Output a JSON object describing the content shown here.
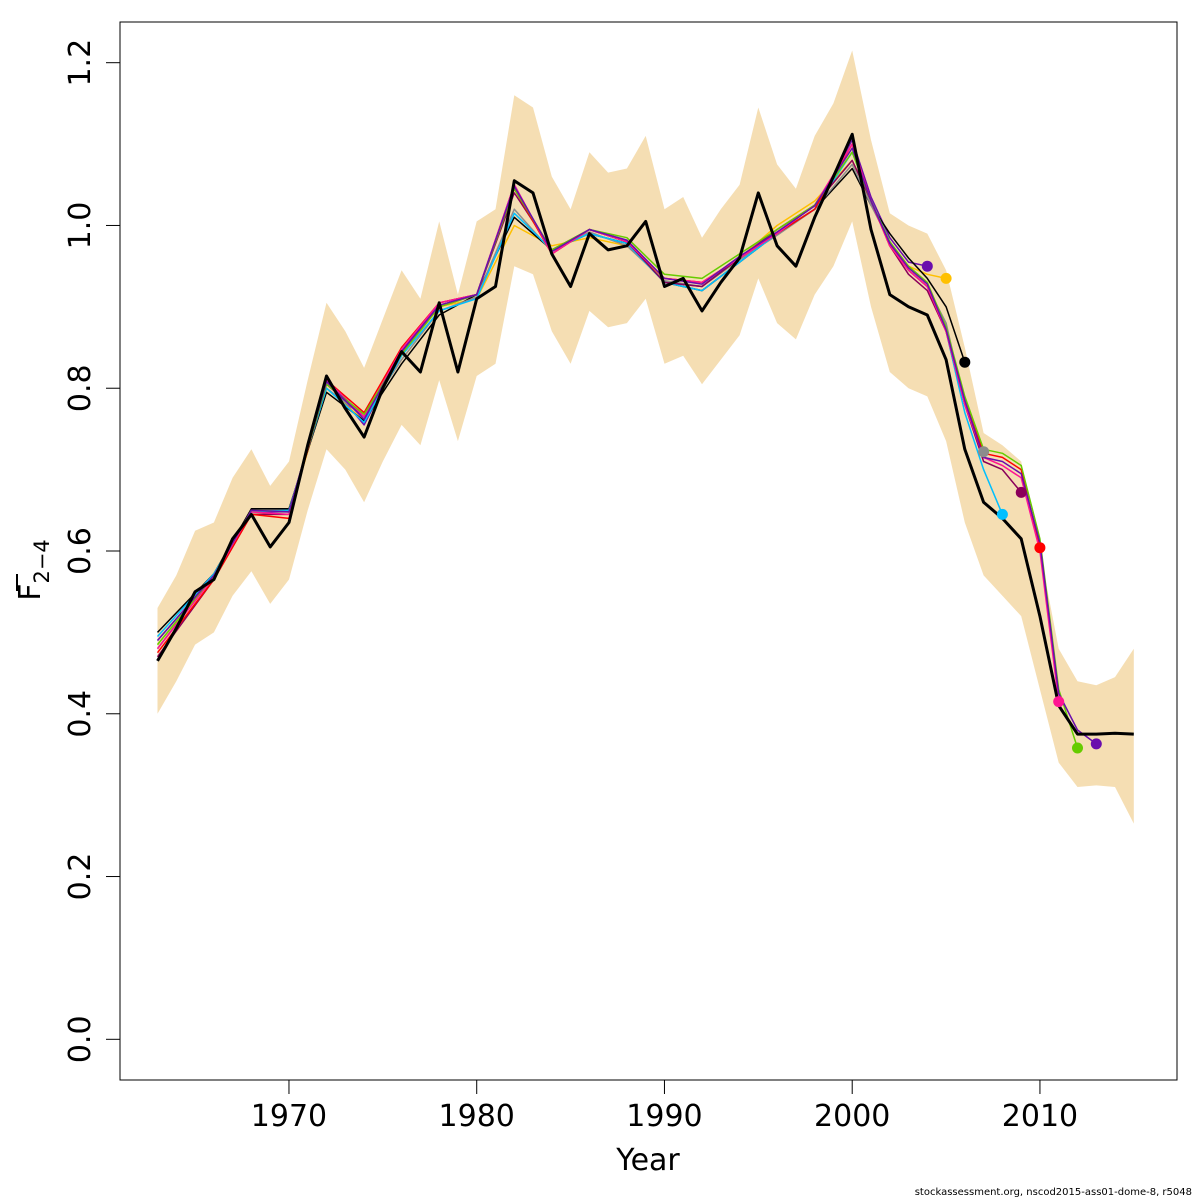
{
  "chart_data": {
    "type": "line",
    "title": "",
    "xlabel": "Year",
    "ylabel_main": "F",
    "ylabel_sub": "2−4",
    "xlim": [
      1961,
      2017.3
    ],
    "ylim": [
      -0.05,
      1.25
    ],
    "x_ticks": [
      1970,
      1980,
      1990,
      2000,
      2010
    ],
    "x_tick_labels": [
      "1970",
      "1980",
      "1990",
      "2000",
      "2010"
    ],
    "y_ticks": [
      0.0,
      0.2,
      0.4,
      0.6,
      0.8,
      1.0,
      1.2
    ],
    "y_tick_labels": [
      "0.0",
      "0.2",
      "0.4",
      "0.6",
      "0.8",
      "1.0",
      "1.2"
    ],
    "band_color": "#f5deb3",
    "grid": false,
    "confidence_band": {
      "x": [
        1963,
        1964,
        1965,
        1966,
        1967,
        1968,
        1969,
        1970,
        1971,
        1972,
        1973,
        1974,
        1975,
        1976,
        1977,
        1978,
        1979,
        1980,
        1981,
        1982,
        1983,
        1984,
        1985,
        1986,
        1987,
        1988,
        1989,
        1990,
        1991,
        1992,
        1993,
        1994,
        1995,
        1996,
        1997,
        1998,
        1999,
        2000,
        2001,
        2002,
        2003,
        2004,
        2005,
        2006,
        2007,
        2008,
        2009,
        2010,
        2011,
        2012,
        2013,
        2014,
        2015
      ],
      "upper": [
        0.53,
        0.57,
        0.625,
        0.635,
        0.69,
        0.725,
        0.68,
        0.71,
        0.81,
        0.905,
        0.87,
        0.825,
        0.885,
        0.945,
        0.91,
        1.005,
        0.915,
        1.005,
        1.02,
        1.16,
        1.145,
        1.06,
        1.02,
        1.09,
        1.065,
        1.07,
        1.11,
        1.02,
        1.035,
        0.985,
        1.02,
        1.05,
        1.145,
        1.075,
        1.045,
        1.11,
        1.15,
        1.215,
        1.105,
        1.015,
        1.0,
        0.99,
        0.945,
        0.85,
        0.745,
        0.73,
        0.71,
        0.6,
        0.48,
        0.44,
        0.435,
        0.445,
        0.48
      ],
      "lower": [
        0.4,
        0.44,
        0.485,
        0.5,
        0.545,
        0.575,
        0.535,
        0.565,
        0.65,
        0.725,
        0.7,
        0.66,
        0.71,
        0.755,
        0.73,
        0.81,
        0.735,
        0.815,
        0.83,
        0.95,
        0.94,
        0.87,
        0.83,
        0.895,
        0.875,
        0.88,
        0.91,
        0.83,
        0.84,
        0.805,
        0.835,
        0.865,
        0.935,
        0.88,
        0.86,
        0.915,
        0.95,
        1.005,
        0.9,
        0.82,
        0.8,
        0.79,
        0.735,
        0.635,
        0.57,
        0.545,
        0.52,
        0.43,
        0.34,
        0.31,
        0.312,
        0.31,
        0.265
      ]
    },
    "series": [
      {
        "color": "#000000",
        "width": 3,
        "end_marker": false,
        "x": [
          1963,
          1964,
          1965,
          1966,
          1967,
          1968,
          1969,
          1970,
          1971,
          1972,
          1973,
          1974,
          1975,
          1976,
          1977,
          1978,
          1979,
          1980,
          1981,
          1982,
          1983,
          1984,
          1985,
          1986,
          1987,
          1988,
          1989,
          1990,
          1991,
          1992,
          1993,
          1994,
          1995,
          1996,
          1997,
          1998,
          1999,
          2000,
          2001,
          2002,
          2003,
          2004,
          2005,
          2006,
          2007,
          2008,
          2009,
          2010,
          2011,
          2012,
          2013,
          2014,
          2015
        ],
        "y": [
          0.465,
          0.505,
          0.55,
          0.565,
          0.615,
          0.645,
          0.605,
          0.635,
          0.73,
          0.815,
          0.775,
          0.74,
          0.8,
          0.845,
          0.82,
          0.905,
          0.82,
          0.91,
          0.925,
          1.055,
          1.04,
          0.965,
          0.925,
          0.99,
          0.97,
          0.975,
          1.005,
          0.925,
          0.935,
          0.895,
          0.93,
          0.96,
          1.04,
          0.975,
          0.95,
          1.01,
          1.06,
          1.112,
          0.995,
          0.915,
          0.9,
          0.89,
          0.835,
          0.725,
          0.66,
          0.64,
          0.615,
          0.52,
          0.41,
          0.375,
          0.375,
          0.376,
          0.375
        ]
      },
      {
        "color": "#6a0dad",
        "width": 1.5,
        "end_marker": true,
        "x": [
          1963,
          1966,
          1968,
          1970,
          1972,
          1974,
          1976,
          1978,
          1980,
          1982,
          1984,
          1986,
          1988,
          1990,
          1992,
          1994,
          1996,
          1998,
          2000,
          2001,
          2002,
          2003,
          2004
        ],
        "y": [
          0.48,
          0.57,
          0.648,
          0.648,
          0.81,
          0.755,
          0.845,
          0.905,
          0.915,
          1.05,
          0.965,
          0.995,
          0.98,
          0.93,
          0.925,
          0.96,
          0.99,
          1.02,
          1.105,
          1.035,
          0.985,
          0.955,
          0.95
        ]
      },
      {
        "color": "#ffc000",
        "width": 1.5,
        "end_marker": true,
        "x": [
          1963,
          1966,
          1968,
          1970,
          1972,
          1974,
          1976,
          1978,
          1980,
          1982,
          1984,
          1986,
          1988,
          1990,
          1992,
          1994,
          1996,
          1998,
          2000,
          2001,
          2002,
          2003,
          2004,
          2005
        ],
        "y": [
          0.485,
          0.568,
          0.645,
          0.645,
          0.8,
          0.76,
          0.84,
          0.9,
          0.91,
          1.0,
          0.975,
          0.985,
          0.975,
          0.935,
          0.93,
          0.96,
          1.0,
          1.03,
          1.08,
          1.03,
          0.975,
          0.95,
          0.94,
          0.935
        ]
      },
      {
        "color": "#000000",
        "width": 1.5,
        "end_marker": true,
        "x": [
          1963,
          1966,
          1968,
          1970,
          1972,
          1974,
          1976,
          1978,
          1980,
          1982,
          1984,
          1986,
          1988,
          1990,
          1992,
          1994,
          1996,
          1998,
          2000,
          2001,
          2002,
          2003,
          2004,
          2005,
          2006
        ],
        "y": [
          0.5,
          0.572,
          0.652,
          0.652,
          0.795,
          0.76,
          0.83,
          0.89,
          0.915,
          1.01,
          0.97,
          0.99,
          0.978,
          0.93,
          0.92,
          0.955,
          0.99,
          1.02,
          1.07,
          1.025,
          0.99,
          0.96,
          0.935,
          0.9,
          0.832
        ]
      },
      {
        "color": "#8c8c8c",
        "width": 1.5,
        "end_marker": true,
        "x": [
          1963,
          1966,
          1968,
          1970,
          1972,
          1974,
          1976,
          1978,
          1980,
          1982,
          1984,
          1986,
          1988,
          1990,
          1992,
          1994,
          1996,
          1998,
          2000,
          2001,
          2002,
          2003,
          2004,
          2005,
          2006,
          2007
        ],
        "y": [
          0.49,
          0.57,
          0.65,
          0.65,
          0.8,
          0.765,
          0.835,
          0.895,
          0.912,
          1.02,
          0.968,
          0.992,
          0.975,
          0.932,
          0.925,
          0.958,
          0.988,
          1.02,
          1.075,
          1.025,
          0.98,
          0.945,
          0.925,
          0.88,
          0.78,
          0.722
        ]
      },
      {
        "color": "#00bfff",
        "width": 1.5,
        "end_marker": true,
        "x": [
          1963,
          1966,
          1968,
          1970,
          1972,
          1974,
          1976,
          1978,
          1980,
          1982,
          1984,
          1986,
          1988,
          1990,
          1992,
          1994,
          1996,
          1998,
          2000,
          2001,
          2002,
          2003,
          2004,
          2005,
          2006,
          2007,
          2008
        ],
        "y": [
          0.495,
          0.572,
          0.648,
          0.65,
          0.8,
          0.758,
          0.84,
          0.895,
          0.91,
          1.015,
          0.97,
          0.99,
          0.978,
          0.93,
          0.92,
          0.955,
          0.99,
          1.02,
          1.09,
          1.03,
          0.98,
          0.945,
          0.925,
          0.87,
          0.77,
          0.7,
          0.645
        ]
      },
      {
        "color": "#8b005a",
        "width": 1.5,
        "end_marker": true,
        "x": [
          1963,
          1966,
          1968,
          1970,
          1972,
          1974,
          1976,
          1978,
          1980,
          1982,
          1984,
          1986,
          1988,
          1990,
          1992,
          1994,
          1996,
          1998,
          2000,
          2001,
          2002,
          2003,
          2004,
          2005,
          2006,
          2007,
          2008,
          2009
        ],
        "y": [
          0.47,
          0.565,
          0.645,
          0.645,
          0.805,
          0.765,
          0.845,
          0.9,
          0.915,
          1.04,
          0.97,
          0.995,
          0.98,
          0.93,
          0.925,
          0.96,
          0.995,
          1.025,
          1.08,
          1.03,
          0.975,
          0.94,
          0.92,
          0.87,
          0.78,
          0.71,
          0.7,
          0.672
        ]
      },
      {
        "color": "#ff0000",
        "width": 1.5,
        "end_marker": true,
        "x": [
          1963,
          1966,
          1968,
          1970,
          1972,
          1974,
          1976,
          1978,
          1980,
          1982,
          1984,
          1986,
          1988,
          1990,
          1992,
          1994,
          1996,
          1998,
          2000,
          2001,
          2002,
          2003,
          2004,
          2005,
          2006,
          2007,
          2008,
          2009,
          2010
        ],
        "y": [
          0.475,
          0.565,
          0.645,
          0.64,
          0.81,
          0.77,
          0.85,
          0.905,
          0.915,
          1.045,
          0.965,
          0.995,
          0.98,
          0.935,
          0.93,
          0.96,
          0.99,
          1.02,
          1.1,
          1.03,
          0.975,
          0.945,
          0.925,
          0.87,
          0.785,
          0.72,
          0.715,
          0.7,
          0.604
        ]
      },
      {
        "color": "#ff1493",
        "width": 1.5,
        "end_marker": true,
        "x": [
          1963,
          1966,
          1968,
          1970,
          1972,
          1974,
          1976,
          1978,
          1980,
          1982,
          1984,
          1986,
          1988,
          1990,
          1992,
          1994,
          1996,
          1998,
          2000,
          2001,
          2002,
          2003,
          2004,
          2005,
          2006,
          2007,
          2008,
          2009,
          2010,
          2011
        ],
        "y": [
          0.48,
          0.568,
          0.648,
          0.645,
          0.81,
          0.765,
          0.848,
          0.905,
          0.915,
          1.05,
          0.965,
          0.995,
          0.98,
          0.935,
          0.93,
          0.96,
          0.99,
          1.025,
          1.1,
          1.03,
          0.975,
          0.945,
          0.925,
          0.87,
          0.78,
          0.715,
          0.705,
          0.69,
          0.6,
          0.415
        ]
      },
      {
        "color": "#66cc00",
        "width": 1.5,
        "end_marker": true,
        "x": [
          1963,
          1966,
          1968,
          1970,
          1972,
          1974,
          1976,
          1978,
          1980,
          1982,
          1984,
          1986,
          1988,
          1990,
          1992,
          1994,
          1996,
          1998,
          2000,
          2001,
          2002,
          2003,
          2004,
          2005,
          2006,
          2007,
          2008,
          2009,
          2010,
          2011,
          2012
        ],
        "y": [
          0.485,
          0.57,
          0.65,
          0.648,
          0.805,
          0.768,
          0.842,
          0.9,
          0.915,
          1.045,
          0.97,
          0.995,
          0.985,
          0.94,
          0.935,
          0.965,
          0.995,
          1.025,
          1.09,
          1.03,
          0.98,
          0.95,
          0.93,
          0.875,
          0.79,
          0.725,
          0.72,
          0.705,
          0.615,
          0.43,
          0.358
        ]
      },
      {
        "color": "#6a0dad",
        "width": 1.5,
        "end_marker": true,
        "x": [
          1963,
          1966,
          1968,
          1970,
          1972,
          1974,
          1976,
          1978,
          1980,
          1982,
          1984,
          1986,
          1988,
          1990,
          1992,
          1994,
          1996,
          1998,
          2000,
          2001,
          2002,
          2003,
          2004,
          2005,
          2006,
          2007,
          2008,
          2009,
          2010,
          2011,
          2012,
          2013
        ],
        "y": [
          0.49,
          0.57,
          0.65,
          0.648,
          0.808,
          0.762,
          0.845,
          0.902,
          0.915,
          1.048,
          0.968,
          0.995,
          0.982,
          0.935,
          0.928,
          0.962,
          0.992,
          1.024,
          1.095,
          1.03,
          0.978,
          0.948,
          0.928,
          0.872,
          0.785,
          0.715,
          0.71,
          0.695,
          0.61,
          0.425,
          0.38,
          0.363
        ]
      }
    ]
  },
  "footer_text": "stockassessment.org, nscod2015-ass01-dome-8, r5048"
}
